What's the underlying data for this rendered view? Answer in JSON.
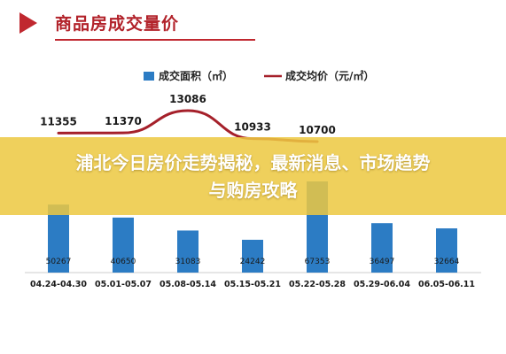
{
  "header": {
    "title": "商品房成交量价"
  },
  "banner": {
    "line1": "浦北今日房价走势揭秘，最新消息、市场趋势",
    "line2": "与购房攻略"
  },
  "colors": {
    "bar": "#2c7cc4",
    "line": "#a5202a",
    "accent": "#c0282f"
  },
  "chart_data": {
    "type": "bar",
    "categories": [
      "04.24-04.30",
      "05.01-05.07",
      "05.08-05.14",
      "05.15-05.21",
      "05.22-05.28",
      "05.29-06.04",
      "06.05-06.11"
    ],
    "series": [
      {
        "name": "成交面积（㎡）",
        "type": "bar",
        "values": [
          50267,
          40650,
          31083,
          24242,
          67353,
          36497,
          32664
        ]
      },
      {
        "name": "成交均价（元/㎡）",
        "type": "line",
        "values": [
          11355,
          11370,
          13086,
          10933,
          10700,
          null,
          null
        ]
      }
    ],
    "legend_position": "top",
    "grid": false
  }
}
